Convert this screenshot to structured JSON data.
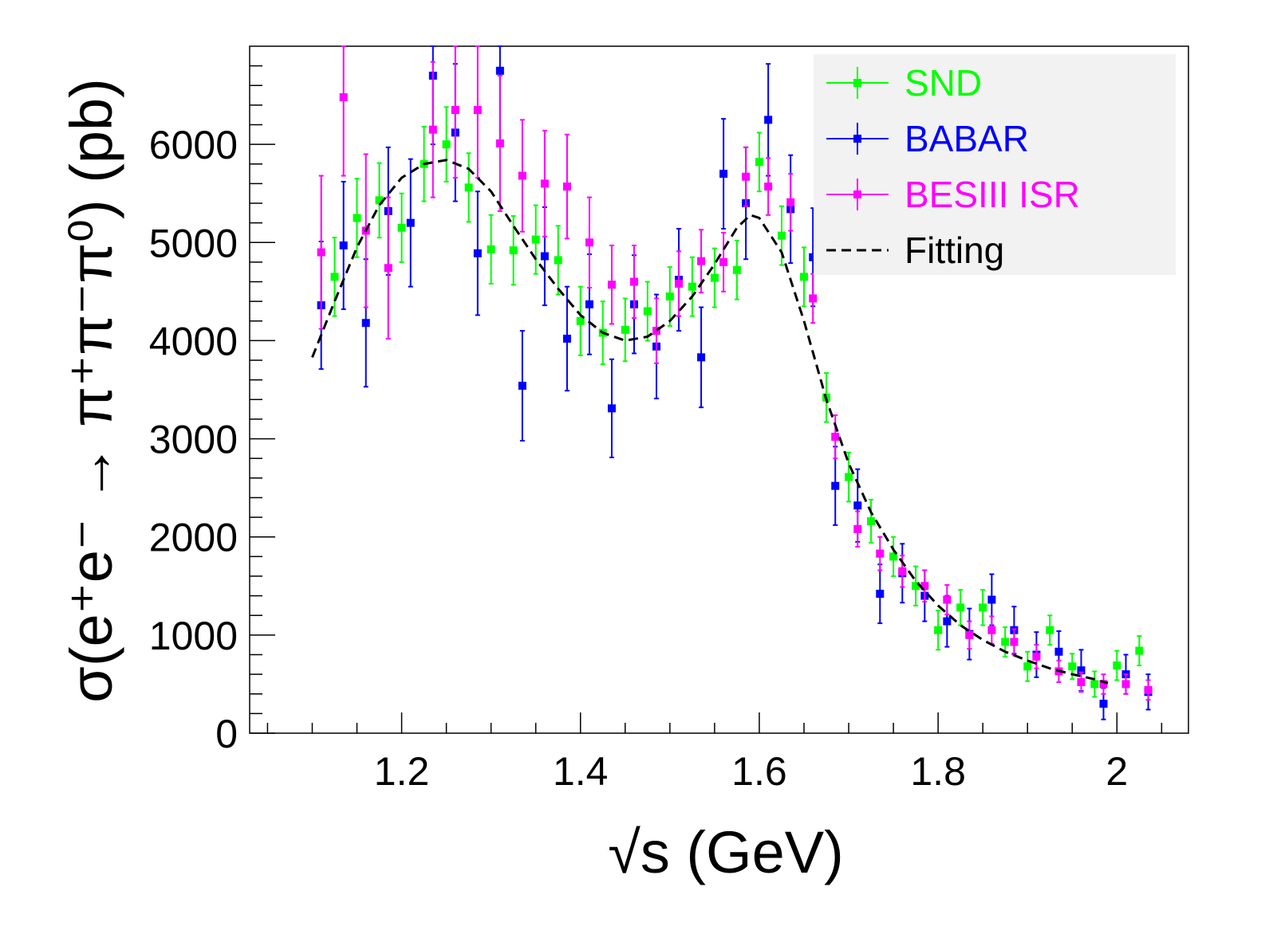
{
  "chart_data": {
    "type": "scatter",
    "title": "",
    "xlabel": "√s (GeV)",
    "ylabel": "σ(e⁺e⁻ → π⁺π⁻π⁰) (pb)",
    "xlim": [
      1.03,
      2.08
    ],
    "ylim": [
      0,
      7000
    ],
    "x_ticks": [
      "1.2",
      "1.4",
      "1.6",
      "1.8",
      "2"
    ],
    "y_ticks": [
      "0",
      "1000",
      "2000",
      "3000",
      "4000",
      "5000",
      "6000"
    ],
    "grid": false,
    "legend_position": "top-right",
    "colors": {
      "SND": "#00ff00",
      "BABAR": "#0000ff",
      "BESIII ISR": "#ff00ff",
      "Fitting": "#000000"
    },
    "series": [
      {
        "name": "SND",
        "points": [
          [
            1.125,
            4650,
            400
          ],
          [
            1.15,
            5250,
            400
          ],
          [
            1.175,
            5430,
            380
          ],
          [
            1.2,
            5150,
            350
          ],
          [
            1.225,
            5800,
            380
          ],
          [
            1.25,
            6000,
            380
          ],
          [
            1.275,
            5560,
            350
          ],
          [
            1.3,
            4930,
            350
          ],
          [
            1.325,
            4920,
            350
          ],
          [
            1.35,
            5030,
            350
          ],
          [
            1.375,
            4820,
            350
          ],
          [
            1.4,
            4200,
            350
          ],
          [
            1.425,
            4080,
            320
          ],
          [
            1.45,
            4110,
            320
          ],
          [
            1.475,
            4300,
            300
          ],
          [
            1.5,
            4450,
            300
          ],
          [
            1.525,
            4550,
            300
          ],
          [
            1.55,
            4640,
            300
          ],
          [
            1.575,
            4720,
            300
          ],
          [
            1.6,
            5820,
            300
          ],
          [
            1.625,
            5070,
            300
          ],
          [
            1.65,
            4650,
            300
          ],
          [
            1.675,
            3420,
            250
          ],
          [
            1.7,
            2610,
            250
          ],
          [
            1.725,
            2160,
            220
          ],
          [
            1.75,
            1800,
            200
          ],
          [
            1.775,
            1500,
            200
          ],
          [
            1.8,
            1050,
            200
          ],
          [
            1.825,
            1280,
            180
          ],
          [
            1.85,
            1280,
            180
          ],
          [
            1.875,
            930,
            150
          ],
          [
            1.9,
            680,
            150
          ],
          [
            1.925,
            1050,
            150
          ],
          [
            1.95,
            680,
            130
          ],
          [
            1.975,
            500,
            130
          ],
          [
            2.0,
            690,
            150
          ],
          [
            2.025,
            840,
            150
          ]
        ]
      },
      {
        "name": "BABAR",
        "points": [
          [
            1.11,
            4360,
            650
          ],
          [
            1.135,
            4970,
            650
          ],
          [
            1.16,
            4180,
            650
          ],
          [
            1.185,
            5320,
            650
          ],
          [
            1.21,
            5200,
            650
          ],
          [
            1.235,
            6700,
            700
          ],
          [
            1.26,
            6120,
            700
          ],
          [
            1.285,
            4890,
            630
          ],
          [
            1.31,
            6750,
            750
          ],
          [
            1.335,
            3540,
            560
          ],
          [
            1.36,
            4860,
            500
          ],
          [
            1.385,
            4020,
            530
          ],
          [
            1.41,
            4370,
            510
          ],
          [
            1.435,
            3310,
            500
          ],
          [
            1.46,
            4370,
            500
          ],
          [
            1.485,
            3940,
            530
          ],
          [
            1.51,
            4620,
            520
          ],
          [
            1.535,
            3830,
            510
          ],
          [
            1.56,
            5700,
            560
          ],
          [
            1.585,
            5400,
            570
          ],
          [
            1.61,
            6250,
            570
          ],
          [
            1.635,
            5340,
            550
          ],
          [
            1.66,
            4850,
            500
          ],
          [
            1.685,
            2520,
            400
          ],
          [
            1.71,
            2320,
            370
          ],
          [
            1.735,
            1420,
            300
          ],
          [
            1.76,
            1630,
            300
          ],
          [
            1.785,
            1400,
            260
          ],
          [
            1.81,
            1140,
            260
          ],
          [
            1.835,
            1010,
            260
          ],
          [
            1.86,
            1360,
            260
          ],
          [
            1.885,
            1050,
            240
          ],
          [
            1.91,
            800,
            230
          ],
          [
            1.935,
            830,
            210
          ],
          [
            1.96,
            640,
            210
          ],
          [
            1.985,
            300,
            160
          ],
          [
            2.01,
            600,
            200
          ],
          [
            2.035,
            420,
            180
          ]
        ]
      },
      {
        "name": "BESIII ISR",
        "points": [
          [
            1.11,
            4900,
            780
          ],
          [
            1.135,
            6480,
            800
          ],
          [
            1.16,
            5120,
            780
          ],
          [
            1.185,
            4740,
            720
          ],
          [
            1.235,
            6150,
            690
          ],
          [
            1.26,
            6350,
            690
          ],
          [
            1.285,
            6350,
            690
          ],
          [
            1.31,
            6010,
            690
          ],
          [
            1.335,
            5680,
            570
          ],
          [
            1.36,
            5600,
            540
          ],
          [
            1.385,
            5570,
            530
          ],
          [
            1.41,
            5000,
            460
          ],
          [
            1.435,
            4570,
            400
          ],
          [
            1.46,
            4600,
            370
          ],
          [
            1.485,
            4100,
            330
          ],
          [
            1.51,
            4580,
            330
          ],
          [
            1.535,
            4810,
            320
          ],
          [
            1.56,
            4800,
            300
          ],
          [
            1.585,
            5670,
            300
          ],
          [
            1.61,
            5570,
            290
          ],
          [
            1.635,
            5410,
            290
          ],
          [
            1.66,
            4430,
            250
          ],
          [
            1.685,
            3020,
            220
          ],
          [
            1.71,
            2080,
            180
          ],
          [
            1.735,
            1830,
            170
          ],
          [
            1.76,
            1650,
            160
          ],
          [
            1.785,
            1500,
            160
          ],
          [
            1.81,
            1360,
            150
          ],
          [
            1.835,
            1000,
            140
          ],
          [
            1.86,
            1050,
            140
          ],
          [
            1.885,
            930,
            130
          ],
          [
            1.91,
            780,
            120
          ],
          [
            1.935,
            630,
            110
          ],
          [
            1.96,
            520,
            100
          ],
          [
            1.985,
            500,
            100
          ],
          [
            2.01,
            500,
            100
          ],
          [
            2.035,
            440,
            100
          ]
        ]
      },
      {
        "name": "Fitting",
        "style": "dashed",
        "curve": [
          [
            1.1,
            3830
          ],
          [
            1.125,
            4400
          ],
          [
            1.15,
            4950
          ],
          [
            1.175,
            5380
          ],
          [
            1.2,
            5660
          ],
          [
            1.225,
            5800
          ],
          [
            1.25,
            5840
          ],
          [
            1.275,
            5750
          ],
          [
            1.3,
            5520
          ],
          [
            1.325,
            5170
          ],
          [
            1.35,
            4830
          ],
          [
            1.375,
            4530
          ],
          [
            1.4,
            4260
          ],
          [
            1.425,
            4080
          ],
          [
            1.45,
            4000
          ],
          [
            1.475,
            4040
          ],
          [
            1.5,
            4200
          ],
          [
            1.525,
            4450
          ],
          [
            1.55,
            4780
          ],
          [
            1.575,
            5150
          ],
          [
            1.59,
            5280
          ],
          [
            1.6,
            5250
          ],
          [
            1.625,
            4900
          ],
          [
            1.65,
            4200
          ],
          [
            1.675,
            3400
          ],
          [
            1.7,
            2750
          ],
          [
            1.725,
            2250
          ],
          [
            1.75,
            1870
          ],
          [
            1.775,
            1550
          ],
          [
            1.8,
            1300
          ],
          [
            1.825,
            1100
          ],
          [
            1.85,
            950
          ],
          [
            1.875,
            830
          ],
          [
            1.9,
            740
          ],
          [
            1.925,
            660
          ],
          [
            1.95,
            600
          ],
          [
            1.975,
            550
          ],
          [
            1.99,
            510
          ]
        ]
      }
    ]
  }
}
